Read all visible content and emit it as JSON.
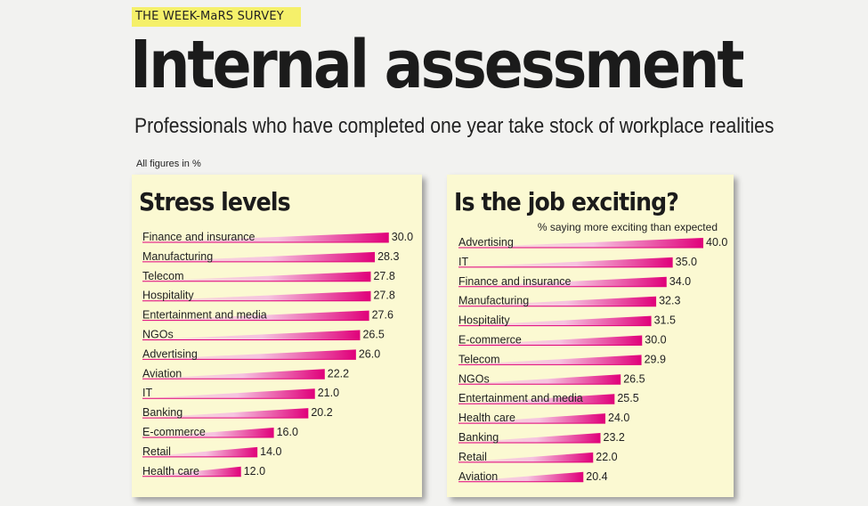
{
  "header": {
    "tag": "THE WEEK-MaRS SURVEY",
    "title": "Internal assessment",
    "subtitle": "Professionals who have completed one year take stock of workplace realities",
    "note": "All figures in %"
  },
  "colors": {
    "panel_bg": "#fbf9d2",
    "bar_dark": "#e0007a",
    "bar_light": "#f6c3e0",
    "tag_bg": "#f5f06a"
  },
  "chart_data": [
    {
      "type": "bar",
      "orientation": "horizontal",
      "title": "Stress levels",
      "subtitle": "",
      "xlim": [
        0,
        40
      ],
      "grid": false,
      "categories": [
        "Finance and insurance",
        "Manufacturing",
        "Telecom",
        "Hospitality",
        "Entertainment and media",
        "NGOs",
        "Advertising",
        "Aviation",
        "IT",
        "Banking",
        "E-commerce",
        "Retail",
        "Health care"
      ],
      "values": [
        30.0,
        28.3,
        27.8,
        27.8,
        27.6,
        26.5,
        26.0,
        22.2,
        21.0,
        20.2,
        16.0,
        14.0,
        12.0
      ],
      "labels": [
        "30.0",
        "28.3",
        "27.8",
        "27.8",
        "27.6",
        "26.5",
        "26.0",
        "22.2",
        "21.0",
        "20.2",
        "16.0",
        "14.0",
        "12.0"
      ]
    },
    {
      "type": "bar",
      "orientation": "horizontal",
      "title": "Is the job exciting?",
      "subtitle": "% saying more exciting than expected",
      "xlim": [
        0,
        40
      ],
      "grid": false,
      "categories": [
        "Advertising",
        "IT",
        "Finance and insurance",
        "Manufacturing",
        "Hospitality",
        "E-commerce",
        "Telecom",
        "NGOs",
        "Entertainment and media",
        "Health care",
        "Banking",
        "Retail",
        "Aviation"
      ],
      "values": [
        40.0,
        35.0,
        34.0,
        32.3,
        31.5,
        30.0,
        29.9,
        26.5,
        25.5,
        24.0,
        23.2,
        22.0,
        20.4
      ],
      "labels": [
        "40.0",
        "35.0",
        "34.0",
        "32.3",
        "31.5",
        "30.0",
        "29.9",
        "26.5",
        "25.5",
        "24.0",
        "23.2",
        "22.0",
        "20.4"
      ]
    }
  ]
}
